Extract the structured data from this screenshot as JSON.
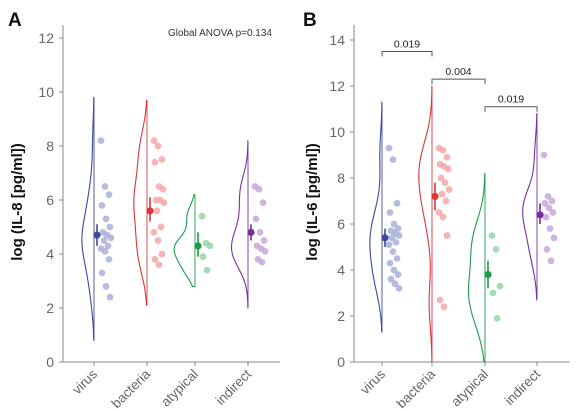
{
  "chart_data": [
    {
      "type": "violin-strip",
      "panel_label": "A",
      "ylabel": "log (IL-8 [pg/ml])",
      "ylim": [
        0,
        12.5
      ],
      "yticks": [
        0,
        2,
        4,
        6,
        8,
        10,
        12
      ],
      "categories": [
        "virus",
        "bacteria",
        "atypical",
        "indirect"
      ],
      "annotation": "Global ANOVA p=0.134",
      "groups": [
        {
          "name": "virus",
          "color": "#3d4a9e",
          "point_color": "#a9b0d8",
          "points": [
            8.2,
            6.5,
            6.2,
            5.8,
            5.3,
            5.0,
            4.8,
            4.7,
            4.6,
            4.5,
            4.3,
            4.2,
            4.1,
            3.8,
            3.3,
            2.8,
            2.4
          ],
          "mean": 4.7,
          "ci": [
            4.3,
            5.1
          ],
          "violin": {
            "min": 0.8,
            "max": 9.8,
            "bw": 0.8,
            "scale": 0.55
          }
        },
        {
          "name": "bacteria",
          "color": "#d93838",
          "point_color": "#f3a8a8",
          "points": [
            8.2,
            8.0,
            7.5,
            7.4,
            6.5,
            6.4,
            6.0,
            6.0,
            5.9,
            5.6,
            5.0,
            4.8,
            4.5,
            4.0,
            3.8,
            3.6
          ],
          "mean": 5.6,
          "ci": [
            5.2,
            6.1
          ],
          "violin": {
            "min": 2.1,
            "max": 9.7,
            "bw": 0.75,
            "scale": 0.6
          }
        },
        {
          "name": "atypical",
          "color": "#1f9a4a",
          "point_color": "#98d3a8",
          "points": [
            5.4,
            4.4,
            4.3,
            3.9,
            3.4
          ],
          "mean": 4.3,
          "ci": [
            3.9,
            4.8
          ],
          "violin": {
            "min": 2.8,
            "max": 6.2,
            "bw": 0.4,
            "scale": 0.95
          }
        },
        {
          "name": "indirect",
          "color": "#7b2f9e",
          "point_color": "#c5a8d8",
          "points": [
            6.5,
            6.4,
            5.9,
            5.3,
            4.8,
            4.5,
            4.3,
            4.2,
            4.1,
            3.8,
            3.7
          ],
          "mean": 4.8,
          "ci": [
            4.5,
            5.1
          ],
          "violin": {
            "min": 2.0,
            "max": 8.2,
            "bw": 0.6,
            "scale": 0.75
          }
        }
      ]
    },
    {
      "type": "violin-strip",
      "panel_label": "B",
      "ylabel": "log (IL-6 [pg/ml])",
      "ylim": [
        0,
        14.5
      ],
      "yticks": [
        0,
        2,
        4,
        6,
        8,
        10,
        12,
        14
      ],
      "categories": [
        "virus",
        "bacteria",
        "atypical",
        "indirect"
      ],
      "significance": [
        {
          "from": 0,
          "to": 1,
          "label": "0.019",
          "y": 13.5
        },
        {
          "from": 1,
          "to": 2,
          "label": "0.004",
          "y": 12.3
        },
        {
          "from": 2,
          "to": 3,
          "label": "0.019",
          "y": 11.1
        }
      ],
      "groups": [
        {
          "name": "virus",
          "color": "#3d4a9e",
          "point_color": "#a9b0d8",
          "points": [
            9.3,
            8.8,
            6.9,
            6.5,
            6.0,
            5.8,
            5.7,
            5.6,
            5.5,
            5.4,
            5.2,
            5.1,
            4.8,
            4.5,
            4.3,
            4.0,
            3.8,
            3.6,
            3.4,
            3.2
          ],
          "mean": 5.4,
          "ci": [
            5.0,
            5.8
          ],
          "violin": {
            "min": 1.3,
            "max": 11.3,
            "bw": 0.9,
            "scale": 0.55
          }
        },
        {
          "name": "bacteria",
          "color": "#d93838",
          "point_color": "#f3a8a8",
          "points": [
            9.3,
            9.2,
            8.9,
            8.6,
            8.5,
            8.4,
            8.0,
            7.8,
            7.5,
            7.3,
            7.0,
            6.5,
            6.3,
            5.5,
            2.7,
            2.4
          ],
          "mean": 7.2,
          "ci": [
            6.6,
            7.8
          ],
          "violin": {
            "min": 0.0,
            "max": 12.0,
            "bw": 1.0,
            "scale": 0.6
          }
        },
        {
          "name": "atypical",
          "color": "#1f9a4a",
          "point_color": "#98d3a8",
          "points": [
            5.5,
            4.9,
            3.3,
            3.0,
            1.9
          ],
          "mean": 3.8,
          "ci": [
            3.2,
            4.4
          ],
          "violin": {
            "min": 0.0,
            "max": 8.2,
            "bw": 1.0,
            "scale": 0.75
          }
        },
        {
          "name": "indirect",
          "color": "#7b2f9e",
          "point_color": "#c5a8d8",
          "points": [
            9.0,
            7.2,
            7.0,
            6.9,
            6.7,
            6.5,
            6.3,
            5.8,
            5.4,
            4.9,
            4.4
          ],
          "mean": 6.4,
          "ci": [
            6.0,
            6.9
          ],
          "violin": {
            "min": 2.7,
            "max": 10.8,
            "bw": 0.8,
            "scale": 0.65
          }
        }
      ]
    }
  ]
}
